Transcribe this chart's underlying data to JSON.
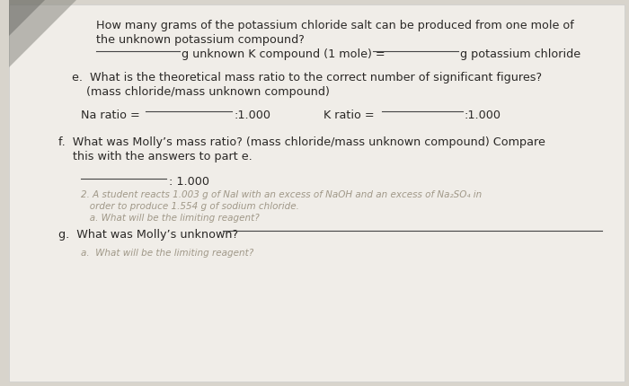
{
  "bg_color": "#d8d4cc",
  "paper_color": "#f0ede8",
  "shadow_color": "#888880",
  "text_color": "#2a2826",
  "faint_text_color": "#a09888",
  "line_color": "#444444",
  "title_line1": "How many grams of the potassium chloride salt can be produced from one mole of",
  "title_line2": "the unknown potassium compound?",
  "section_e_line1": "e.  What is the theoretical mass ratio to the correct number of significant figures?",
  "section_e_line2": "    (mass chloride/mass unknown compound)",
  "section_f_line1": "f.  What was Molly’s mass ratio? (mass chloride/mass unknown compound) Compare",
  "section_f_line2": "    this with the answers to part e.",
  "faint_lines": [
    "2. A student reacts 1.003 g of NaI with an excess of NaOH and an excess of Na₂SO₄ in",
    "   order to produce 1.554 g of sodium chloride.",
    "   a. What will be the limiting reagent?"
  ]
}
